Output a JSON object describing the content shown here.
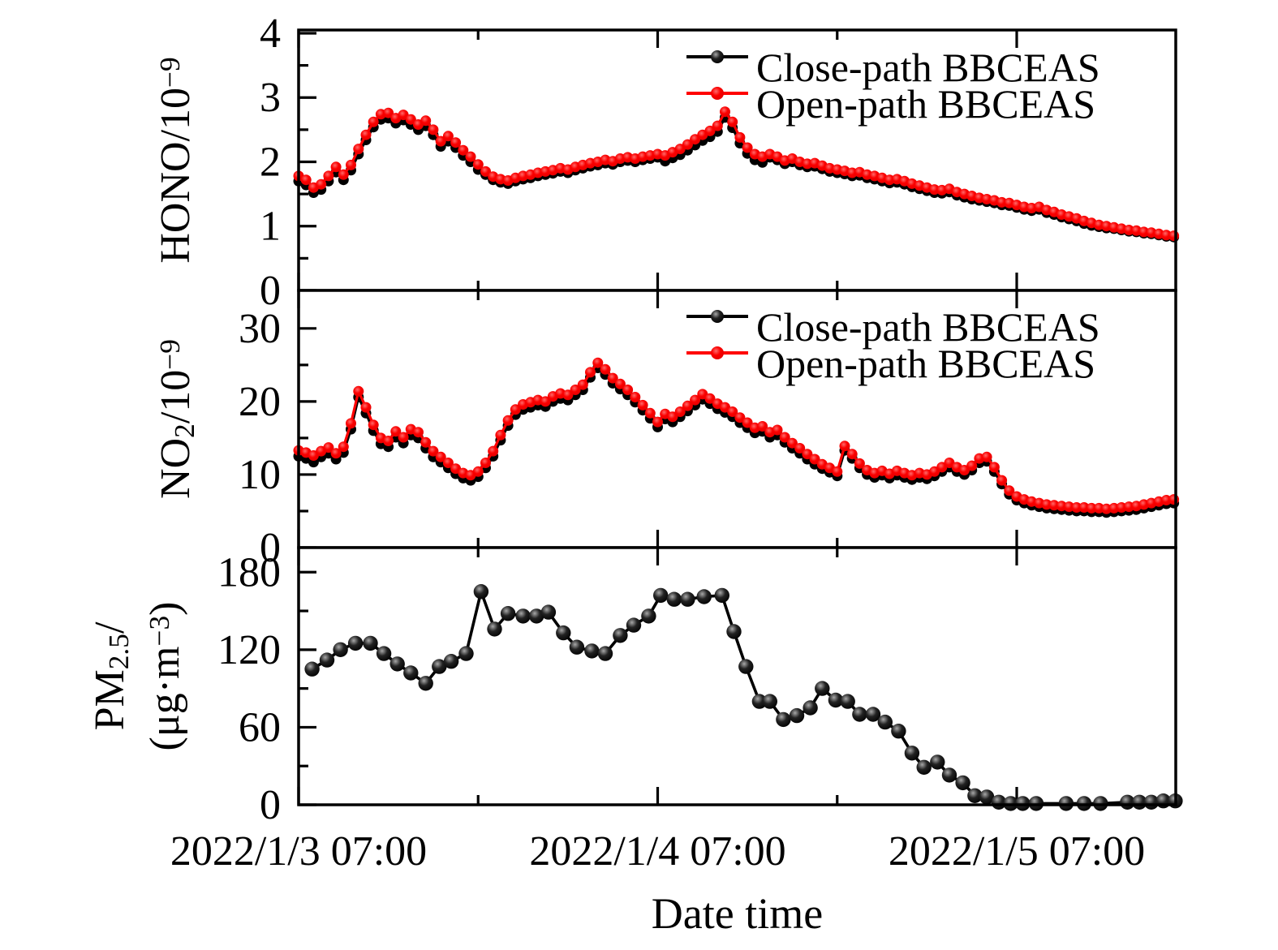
{
  "colors": {
    "close_path": "#000000",
    "open_path": "#ff0000",
    "axis": "#000000",
    "background": "#ffffff"
  },
  "legend": {
    "entries": [
      {
        "label": "Close-path BBCEAS",
        "series": "close_path"
      },
      {
        "label": "Open-path BBCEAS",
        "series": "open_path"
      }
    ]
  },
  "x_axis": {
    "label": "Date time",
    "range_hours": [
      0,
      58.63
    ],
    "major_ticks": [
      {
        "hour": 0,
        "label": "2022/1/3 07:00"
      },
      {
        "hour": 24,
        "label": "2022/1/4 07:00"
      },
      {
        "hour": 48,
        "label": "2022/1/5 07:00"
      }
    ],
    "minor_ticks_hours": [
      12,
      36
    ]
  },
  "chart_data": [
    {
      "type": "line",
      "panel": "HONO",
      "ylabel_lines": [
        [
          {
            "text": "HONO/10"
          },
          {
            "text": "−9",
            "sup": true
          }
        ]
      ],
      "ylim": [
        0,
        4.05
      ],
      "yticks": [
        0,
        1,
        2,
        3,
        4
      ],
      "yminor_step": 0.5,
      "t_start": 0,
      "t_step": 0.5,
      "show_legend": true,
      "series": [
        {
          "name": "Close-path BBCEAS",
          "color_key": "close_path",
          "values": [
            1.7,
            1.64,
            1.52,
            1.57,
            1.7,
            1.84,
            1.72,
            1.87,
            2.12,
            2.34,
            2.54,
            2.66,
            2.68,
            2.6,
            2.65,
            2.58,
            2.5,
            2.56,
            2.42,
            2.24,
            2.32,
            2.22,
            2.1,
            2.0,
            1.88,
            1.8,
            1.72,
            1.68,
            1.66,
            1.7,
            1.73,
            1.75,
            1.78,
            1.8,
            1.82,
            1.85,
            1.83,
            1.87,
            1.9,
            1.93,
            1.95,
            1.98,
            1.96,
            2.0,
            2.02,
            2.0,
            2.03,
            2.05,
            2.07,
            2.01,
            2.06,
            2.11,
            2.18,
            2.26,
            2.33,
            2.39,
            2.47,
            2.69,
            2.53,
            2.29,
            2.13,
            2.03,
            1.99,
            2.07,
            2.03,
            1.97,
            2.0,
            1.95,
            1.92,
            1.93,
            1.89,
            1.85,
            1.83,
            1.81,
            1.78,
            1.79,
            1.75,
            1.73,
            1.7,
            1.67,
            1.68,
            1.65,
            1.61,
            1.58,
            1.55,
            1.52,
            1.51,
            1.53,
            1.48,
            1.45,
            1.42,
            1.4,
            1.38,
            1.36,
            1.33,
            1.32,
            1.29,
            1.26,
            1.24,
            1.26,
            1.21,
            1.18,
            1.14,
            1.11,
            1.08,
            1.04,
            1.01,
            0.99,
            0.97,
            0.96,
            0.94,
            0.92,
            0.91,
            0.89,
            0.88,
            0.86,
            0.84,
            0.83
          ]
        },
        {
          "name": "Open-path BBCEAS",
          "color_key": "open_path",
          "values": [
            1.78,
            1.72,
            1.6,
            1.65,
            1.78,
            1.92,
            1.8,
            1.95,
            2.2,
            2.42,
            2.62,
            2.74,
            2.76,
            2.68,
            2.73,
            2.66,
            2.58,
            2.64,
            2.5,
            2.32,
            2.4,
            2.3,
            2.18,
            2.08,
            1.96,
            1.85,
            1.77,
            1.73,
            1.71,
            1.75,
            1.78,
            1.8,
            1.83,
            1.85,
            1.87,
            1.9,
            1.88,
            1.92,
            1.95,
            1.98,
            2.0,
            2.03,
            2.01,
            2.05,
            2.07,
            2.05,
            2.08,
            2.1,
            2.12,
            2.1,
            2.15,
            2.2,
            2.27,
            2.35,
            2.42,
            2.48,
            2.56,
            2.78,
            2.62,
            2.38,
            2.22,
            2.12,
            2.08,
            2.12,
            2.08,
            2.02,
            2.05,
            2.0,
            1.97,
            1.98,
            1.94,
            1.9,
            1.88,
            1.86,
            1.83,
            1.84,
            1.8,
            1.78,
            1.75,
            1.72,
            1.73,
            1.7,
            1.66,
            1.63,
            1.6,
            1.57,
            1.56,
            1.58,
            1.53,
            1.5,
            1.47,
            1.44,
            1.42,
            1.4,
            1.37,
            1.36,
            1.33,
            1.3,
            1.28,
            1.3,
            1.25,
            1.22,
            1.18,
            1.15,
            1.12,
            1.08,
            1.05,
            1.02,
            1.0,
            0.98,
            0.96,
            0.94,
            0.93,
            0.91,
            0.9,
            0.88,
            0.86,
            0.85
          ]
        }
      ]
    },
    {
      "type": "line",
      "panel": "NO2",
      "ylabel_lines": [
        [
          {
            "text": "NO"
          },
          {
            "text": "2",
            "sub": true
          },
          {
            "text": "/10"
          },
          {
            "text": "−9",
            "sup": true
          }
        ]
      ],
      "ylim": [
        0,
        35.2
      ],
      "yticks": [
        0,
        10,
        20,
        30
      ],
      "yminor_step": 5,
      "t_start": 0,
      "t_step": 0.5,
      "show_legend": true,
      "series": [
        {
          "name": "Close-path BBCEAS",
          "color_key": "close_path",
          "values": [
            12.5,
            12.2,
            11.7,
            12.4,
            12.9,
            12.1,
            13.0,
            16.2,
            20.6,
            18.4,
            16.0,
            14.2,
            13.8,
            15.1,
            14.3,
            15.4,
            15.0,
            13.6,
            12.4,
            11.7,
            10.9,
            10.1,
            9.5,
            9.2,
            9.7,
            10.9,
            12.5,
            14.7,
            16.7,
            18.2,
            18.9,
            19.2,
            19.5,
            19.3,
            20.0,
            20.4,
            20.2,
            20.9,
            21.6,
            23.3,
            24.6,
            23.7,
            22.5,
            21.7,
            20.9,
            19.9,
            18.8,
            17.7,
            16.5,
            17.6,
            17.2,
            17.9,
            18.7,
            19.5,
            20.3,
            19.7,
            19.0,
            18.5,
            17.9,
            17.1,
            16.4,
            15.7,
            15.9,
            15.1,
            15.4,
            14.4,
            13.6,
            12.9,
            12.1,
            11.4,
            10.8,
            10.3,
            9.8,
            13.3,
            12.2,
            10.9,
            10.0,
            9.6,
            9.9,
            9.5,
            9.9,
            9.6,
            9.3,
            9.6,
            9.4,
            9.8,
            10.4,
            11.0,
            10.4,
            10.0,
            10.6,
            11.6,
            11.8,
            10.4,
            8.7,
            7.3,
            6.5,
            6.1,
            5.8,
            5.6,
            5.4,
            5.3,
            5.2,
            5.1,
            5.0,
            5.0,
            4.9,
            4.9,
            4.8,
            4.9,
            5.0,
            5.1,
            5.2,
            5.4,
            5.6,
            5.8,
            6.0,
            6.1
          ]
        },
        {
          "name": "Open-path BBCEAS",
          "color_key": "open_path",
          "values": [
            13.3,
            13.0,
            12.6,
            13.2,
            13.7,
            12.9,
            13.8,
            17.0,
            21.4,
            19.2,
            16.8,
            15.0,
            14.6,
            15.9,
            15.1,
            16.2,
            15.8,
            14.4,
            13.2,
            12.4,
            11.6,
            10.8,
            10.2,
            9.9,
            10.4,
            11.6,
            13.2,
            15.4,
            17.4,
            18.9,
            19.6,
            19.9,
            20.2,
            20.0,
            20.7,
            21.1,
            20.9,
            21.6,
            22.3,
            24.0,
            25.3,
            24.4,
            23.2,
            22.4,
            21.6,
            20.6,
            19.5,
            18.4,
            17.2,
            18.3,
            17.9,
            18.6,
            19.4,
            20.2,
            21.0,
            20.4,
            19.7,
            19.2,
            18.6,
            17.8,
            17.1,
            16.4,
            16.6,
            15.8,
            16.1,
            15.1,
            14.3,
            13.6,
            12.8,
            12.1,
            11.4,
            10.9,
            10.4,
            13.9,
            12.8,
            11.5,
            10.6,
            10.2,
            10.5,
            10.1,
            10.5,
            10.2,
            9.9,
            10.2,
            10.0,
            10.4,
            11.0,
            11.6,
            11.0,
            10.6,
            11.2,
            12.2,
            12.4,
            11.0,
            9.2,
            7.8,
            7.0,
            6.6,
            6.3,
            6.1,
            5.9,
            5.8,
            5.7,
            5.6,
            5.5,
            5.5,
            5.4,
            5.4,
            5.3,
            5.4,
            5.5,
            5.6,
            5.7,
            5.9,
            6.1,
            6.3,
            6.5,
            6.6
          ]
        }
      ]
    },
    {
      "type": "scatter-line",
      "panel": "PM2.5",
      "ylabel_lines": [
        [
          {
            "text": "PM"
          },
          {
            "text": "2.5",
            "sub": true
          },
          {
            "text": "/"
          }
        ],
        [
          {
            "text": "(μg·m"
          },
          {
            "text": "−3",
            "sup": true
          },
          {
            "text": ")"
          }
        ]
      ],
      "ylim": [
        0,
        199
      ],
      "yticks": [
        0,
        60,
        120,
        180
      ],
      "yminor_step": 30,
      "show_legend": false,
      "series": [
        {
          "name": "PM2.5",
          "color_key": "close_path",
          "points": [
            [
              0.9,
              105
            ],
            [
              1.9,
              112
            ],
            [
              2.8,
              120
            ],
            [
              3.8,
              125
            ],
            [
              4.8,
              125
            ],
            [
              5.7,
              117
            ],
            [
              6.6,
              109
            ],
            [
              7.5,
              102
            ],
            [
              8.5,
              94
            ],
            [
              9.4,
              107
            ],
            [
              10.2,
              111
            ],
            [
              11.2,
              117
            ],
            [
              12.2,
              165
            ],
            [
              13.1,
              136
            ],
            [
              14.0,
              148
            ],
            [
              15.0,
              146
            ],
            [
              15.9,
              146
            ],
            [
              16.7,
              149
            ],
            [
              17.7,
              133
            ],
            [
              18.6,
              122
            ],
            [
              19.6,
              119
            ],
            [
              20.5,
              117
            ],
            [
              21.5,
              131
            ],
            [
              22.4,
              139
            ],
            [
              23.4,
              146
            ],
            [
              24.2,
              162
            ],
            [
              25.1,
              159
            ],
            [
              26.0,
              159
            ],
            [
              27.1,
              161
            ],
            [
              28.3,
              162
            ],
            [
              29.1,
              134
            ],
            [
              29.9,
              107
            ],
            [
              30.8,
              80
            ],
            [
              31.5,
              80
            ],
            [
              32.4,
              66
            ],
            [
              33.3,
              69
            ],
            [
              34.2,
              75
            ],
            [
              35.0,
              90
            ],
            [
              35.9,
              81
            ],
            [
              36.7,
              80
            ],
            [
              37.5,
              70
            ],
            [
              38.4,
              70
            ],
            [
              39.2,
              64
            ],
            [
              40.1,
              57
            ],
            [
              41.0,
              40
            ],
            [
              41.8,
              29
            ],
            [
              42.7,
              33
            ],
            [
              43.5,
              23
            ],
            [
              44.4,
              17
            ],
            [
              45.2,
              7
            ],
            [
              46.0,
              6
            ],
            [
              46.8,
              2
            ],
            [
              47.6,
              1
            ],
            [
              48.4,
              1
            ],
            [
              49.3,
              1
            ],
            [
              51.3,
              1
            ],
            [
              52.5,
              1
            ],
            [
              53.6,
              1
            ],
            [
              55.4,
              2
            ],
            [
              56.2,
              2
            ],
            [
              57.0,
              2
            ],
            [
              57.8,
              3
            ],
            [
              58.6,
              3
            ]
          ]
        }
      ]
    }
  ]
}
